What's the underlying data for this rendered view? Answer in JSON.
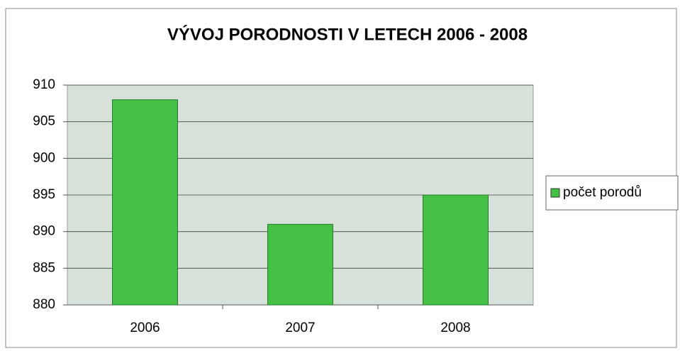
{
  "chart_data": {
    "type": "bar",
    "title": "VÝVOJ PORODNOSTI V LETECH 2006 - 2008",
    "categories": [
      "2006",
      "2007",
      "2008"
    ],
    "series": [
      {
        "name": "počet porodů",
        "color": "#44c144",
        "values": [
          908,
          891,
          895
        ]
      }
    ],
    "ylim": [
      880,
      910
    ],
    "yticks": [
      880,
      885,
      890,
      895,
      900,
      905,
      910
    ],
    "grid": true,
    "legend": "right"
  }
}
